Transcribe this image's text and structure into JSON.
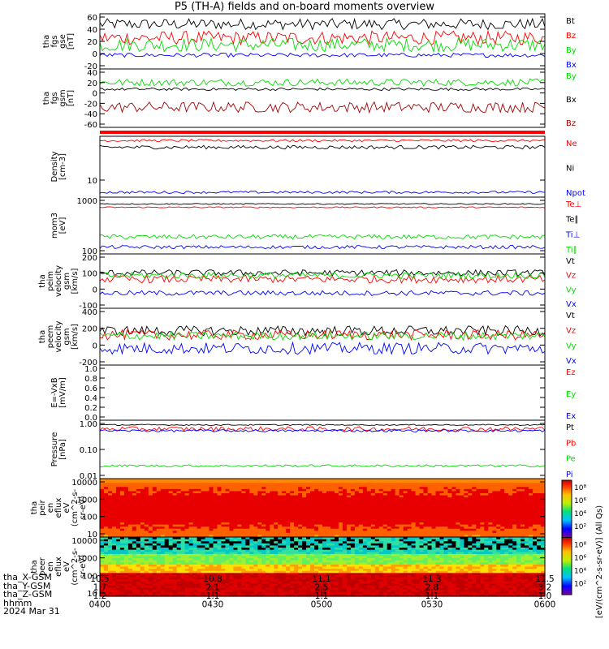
{
  "title": "P5 (TH-A) fields and on-board moments overview",
  "colors": {
    "black": "#000000",
    "red": "#ff0000",
    "green": "#00dd00",
    "blue": "#0000ff",
    "darkred": "#a00000"
  },
  "chart_data": [
    {
      "id": "fgs_gse",
      "type": "line",
      "ylabel": [
        "tha",
        "fgs",
        "gse",
        "[nT]"
      ],
      "yticks": [
        "60",
        "40",
        "20",
        "0",
        "-20"
      ],
      "ylim": [
        -20,
        60
      ],
      "series": [
        {
          "name": "Bt",
          "color": "black",
          "level": 45,
          "noise": 8
        },
        {
          "name": "Bz",
          "color": "red",
          "level": 25,
          "noise": 10
        },
        {
          "name": "By",
          "color": "green",
          "level": 15,
          "noise": 10
        },
        {
          "name": "Bx",
          "color": "blue",
          "level": 0,
          "noise": 3
        }
      ]
    },
    {
      "id": "fgs_gsm",
      "type": "line",
      "ylabel": [
        "tha",
        "fgs",
        "gsm",
        "[nT]"
      ],
      "yticks": [
        "40",
        "20",
        "0",
        "-20",
        "-40",
        "-60"
      ],
      "ylim": [
        -85,
        45
      ],
      "series": [
        {
          "name": "By",
          "color": "green",
          "level": 15,
          "noise": 8
        },
        {
          "name": "Bx",
          "color": "black",
          "level": 0,
          "noise": 3
        },
        {
          "name": "Bz",
          "color": "darkred",
          "level": -40,
          "noise": 12
        }
      ]
    },
    {
      "id": "density",
      "type": "line",
      "ylabel": [
        "Density",
        "[cm-3]"
      ],
      "yticks": [
        "10"
      ],
      "log": true,
      "series": [
        {
          "name": "Ne",
          "color": "red",
          "level": 0.93,
          "noise": 0.02
        },
        {
          "name": "Ni",
          "color": "black",
          "level": 0.82,
          "noise": 0.03
        },
        {
          "name": "Npot",
          "color": "blue",
          "level": 0.08,
          "noise": 0.02
        }
      ]
    },
    {
      "id": "temperature",
      "type": "line",
      "ylabel": [
        "mom3",
        "[eV]"
      ],
      "yticks": [
        "1000",
        "100"
      ],
      "log": true,
      "series": [
        {
          "name": "Te⊥",
          "color": "red",
          "level": 0.82,
          "noise": 0.01
        },
        {
          "name": "Te∥",
          "color": "black",
          "level": 0.88,
          "noise": 0.01
        },
        {
          "name": "Ti⊥",
          "color": "blue",
          "level": 0.12,
          "noise": 0.03
        },
        {
          "name": "Ti∥",
          "color": "green",
          "level": 0.3,
          "noise": 0.04
        }
      ]
    },
    {
      "id": "peim_velocity",
      "type": "line",
      "ylabel": [
        "tha",
        "peim",
        "velocity",
        "gsm",
        "[km/s]"
      ],
      "yticks": [
        "200",
        "100",
        "0",
        "-100"
      ],
      "ylim": [
        -170,
        260
      ],
      "series": [
        {
          "name": "Vt",
          "color": "black",
          "level": 110,
          "noise": 25
        },
        {
          "name": "Vz",
          "color": "red",
          "level": 60,
          "noise": 30
        },
        {
          "name": "Vy",
          "color": "green",
          "level": 90,
          "noise": 25
        },
        {
          "name": "Vx",
          "color": "blue",
          "level": -50,
          "noise": 20
        }
      ]
    },
    {
      "id": "peem_velocity",
      "type": "line",
      "ylabel": [
        "tha",
        "peem",
        "velocity",
        "gsm",
        "[km/s]"
      ],
      "yticks": [
        "400",
        "200",
        "0",
        "-200"
      ],
      "ylim": [
        -260,
        420
      ],
      "series": [
        {
          "name": "Vt",
          "color": "black",
          "level": 150,
          "noise": 60
        },
        {
          "name": "Vz",
          "color": "red",
          "level": 100,
          "noise": 60
        },
        {
          "name": "Vy",
          "color": "green",
          "level": 90,
          "noise": 50
        },
        {
          "name": "Vx",
          "color": "blue",
          "level": -60,
          "noise": 70
        }
      ]
    },
    {
      "id": "efield",
      "type": "line",
      "ylabel": [
        "E=-VxB",
        "[mV/m]"
      ],
      "yticks": [
        "1.0",
        "0.8",
        "0.6",
        "0.4",
        "0.2",
        "0.0"
      ],
      "ylim": [
        0,
        1
      ],
      "series": [
        {
          "name": "Ez",
          "color": "red"
        },
        {
          "name": "Ey",
          "color": "green"
        },
        {
          "name": "Ex",
          "color": "blue"
        }
      ]
    },
    {
      "id": "pressure",
      "type": "line",
      "ylabel": [
        "Pressure",
        "[nPa]"
      ],
      "yticks": [
        "1.00",
        "0.10",
        "0.01"
      ],
      "log": true,
      "series": [
        {
          "name": "Pt",
          "color": "black",
          "level": 0.92,
          "noise": 0.01
        },
        {
          "name": "Pb",
          "color": "red",
          "level": 0.85,
          "noise": 0.04
        },
        {
          "name": "Pe",
          "color": "green",
          "level": 0.22,
          "noise": 0.02
        },
        {
          "name": "Pi",
          "color": "blue",
          "level": 0.82,
          "noise": 0.02
        }
      ]
    },
    {
      "id": "peir_spec",
      "type": "heatmap",
      "ylabel": [
        "tha",
        "peir",
        "en",
        "eflux",
        "eV",
        "(cm^2-s-",
        "sr-eV)"
      ],
      "yticks": [
        "10000",
        "1000",
        "100",
        "10"
      ],
      "log": true
    },
    {
      "id": "peer_spec",
      "type": "heatmap",
      "ylabel": [
        "tha",
        "peer",
        "en",
        "eflux",
        "eV",
        "(cm^2-s-",
        "sr-eV)"
      ],
      "yticks": [
        "10000",
        "1000",
        "100",
        "10"
      ],
      "log": true
    }
  ],
  "colorbar": {
    "label": "[eV/(cm^2-s-sr-eV)] (All Qs)",
    "ticks": [
      "10⁸",
      "10⁶",
      "10⁴",
      "10²",
      "10⁸",
      "10⁶",
      "10⁴",
      "10²"
    ]
  },
  "xaxis": {
    "rows": [
      {
        "label": "tha_X-GSM",
        "values": [
          "10.5",
          "10.8",
          "11.1",
          "11.3",
          "11.5"
        ]
      },
      {
        "label": "tha_Y-GSM",
        "values": [
          "1.7",
          "2.1",
          "2.5",
          "2.8",
          "3.2"
        ]
      },
      {
        "label": "tha_Z-GSM",
        "values": [
          "1.2",
          "1.1",
          "1.1",
          "1.1",
          "1.0"
        ]
      },
      {
        "label": "hhmm",
        "values": [
          "0400",
          "0430",
          "0500",
          "0530",
          "0600"
        ]
      }
    ],
    "date": "2024 Mar 31"
  }
}
